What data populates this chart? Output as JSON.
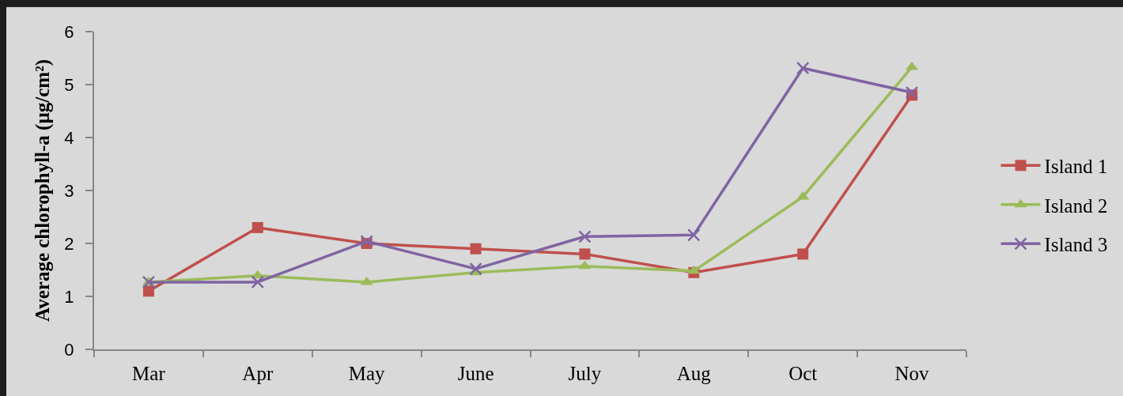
{
  "chart_data": {
    "type": "line",
    "ylabel": "Average chlorophyll-a (µg/cm²)",
    "categories": [
      "Mar",
      "Apr",
      "May",
      "June",
      "July",
      "Aug",
      "Oct",
      "Nov"
    ],
    "series": [
      {
        "name": "Island 1",
        "color": "#c0504d",
        "marker": "square",
        "values": [
          1.1,
          2.3,
          2.0,
          1.9,
          1.8,
          1.45,
          1.8,
          4.8
        ]
      },
      {
        "name": "Island 2",
        "color": "#9bbb59",
        "marker": "triangle",
        "values": [
          1.27,
          1.39,
          1.27,
          1.45,
          1.57,
          1.48,
          2.88,
          5.33
        ]
      },
      {
        "name": "Island 3",
        "color": "#8064a2",
        "marker": "cross",
        "values": [
          1.27,
          1.27,
          2.04,
          1.52,
          2.13,
          2.16,
          5.31,
          4.85
        ]
      }
    ],
    "ylim": [
      0,
      6
    ],
    "yticks": [
      0,
      1,
      2,
      3,
      4,
      5,
      6
    ],
    "grid": false,
    "legend": "right",
    "line_style": "solid"
  }
}
